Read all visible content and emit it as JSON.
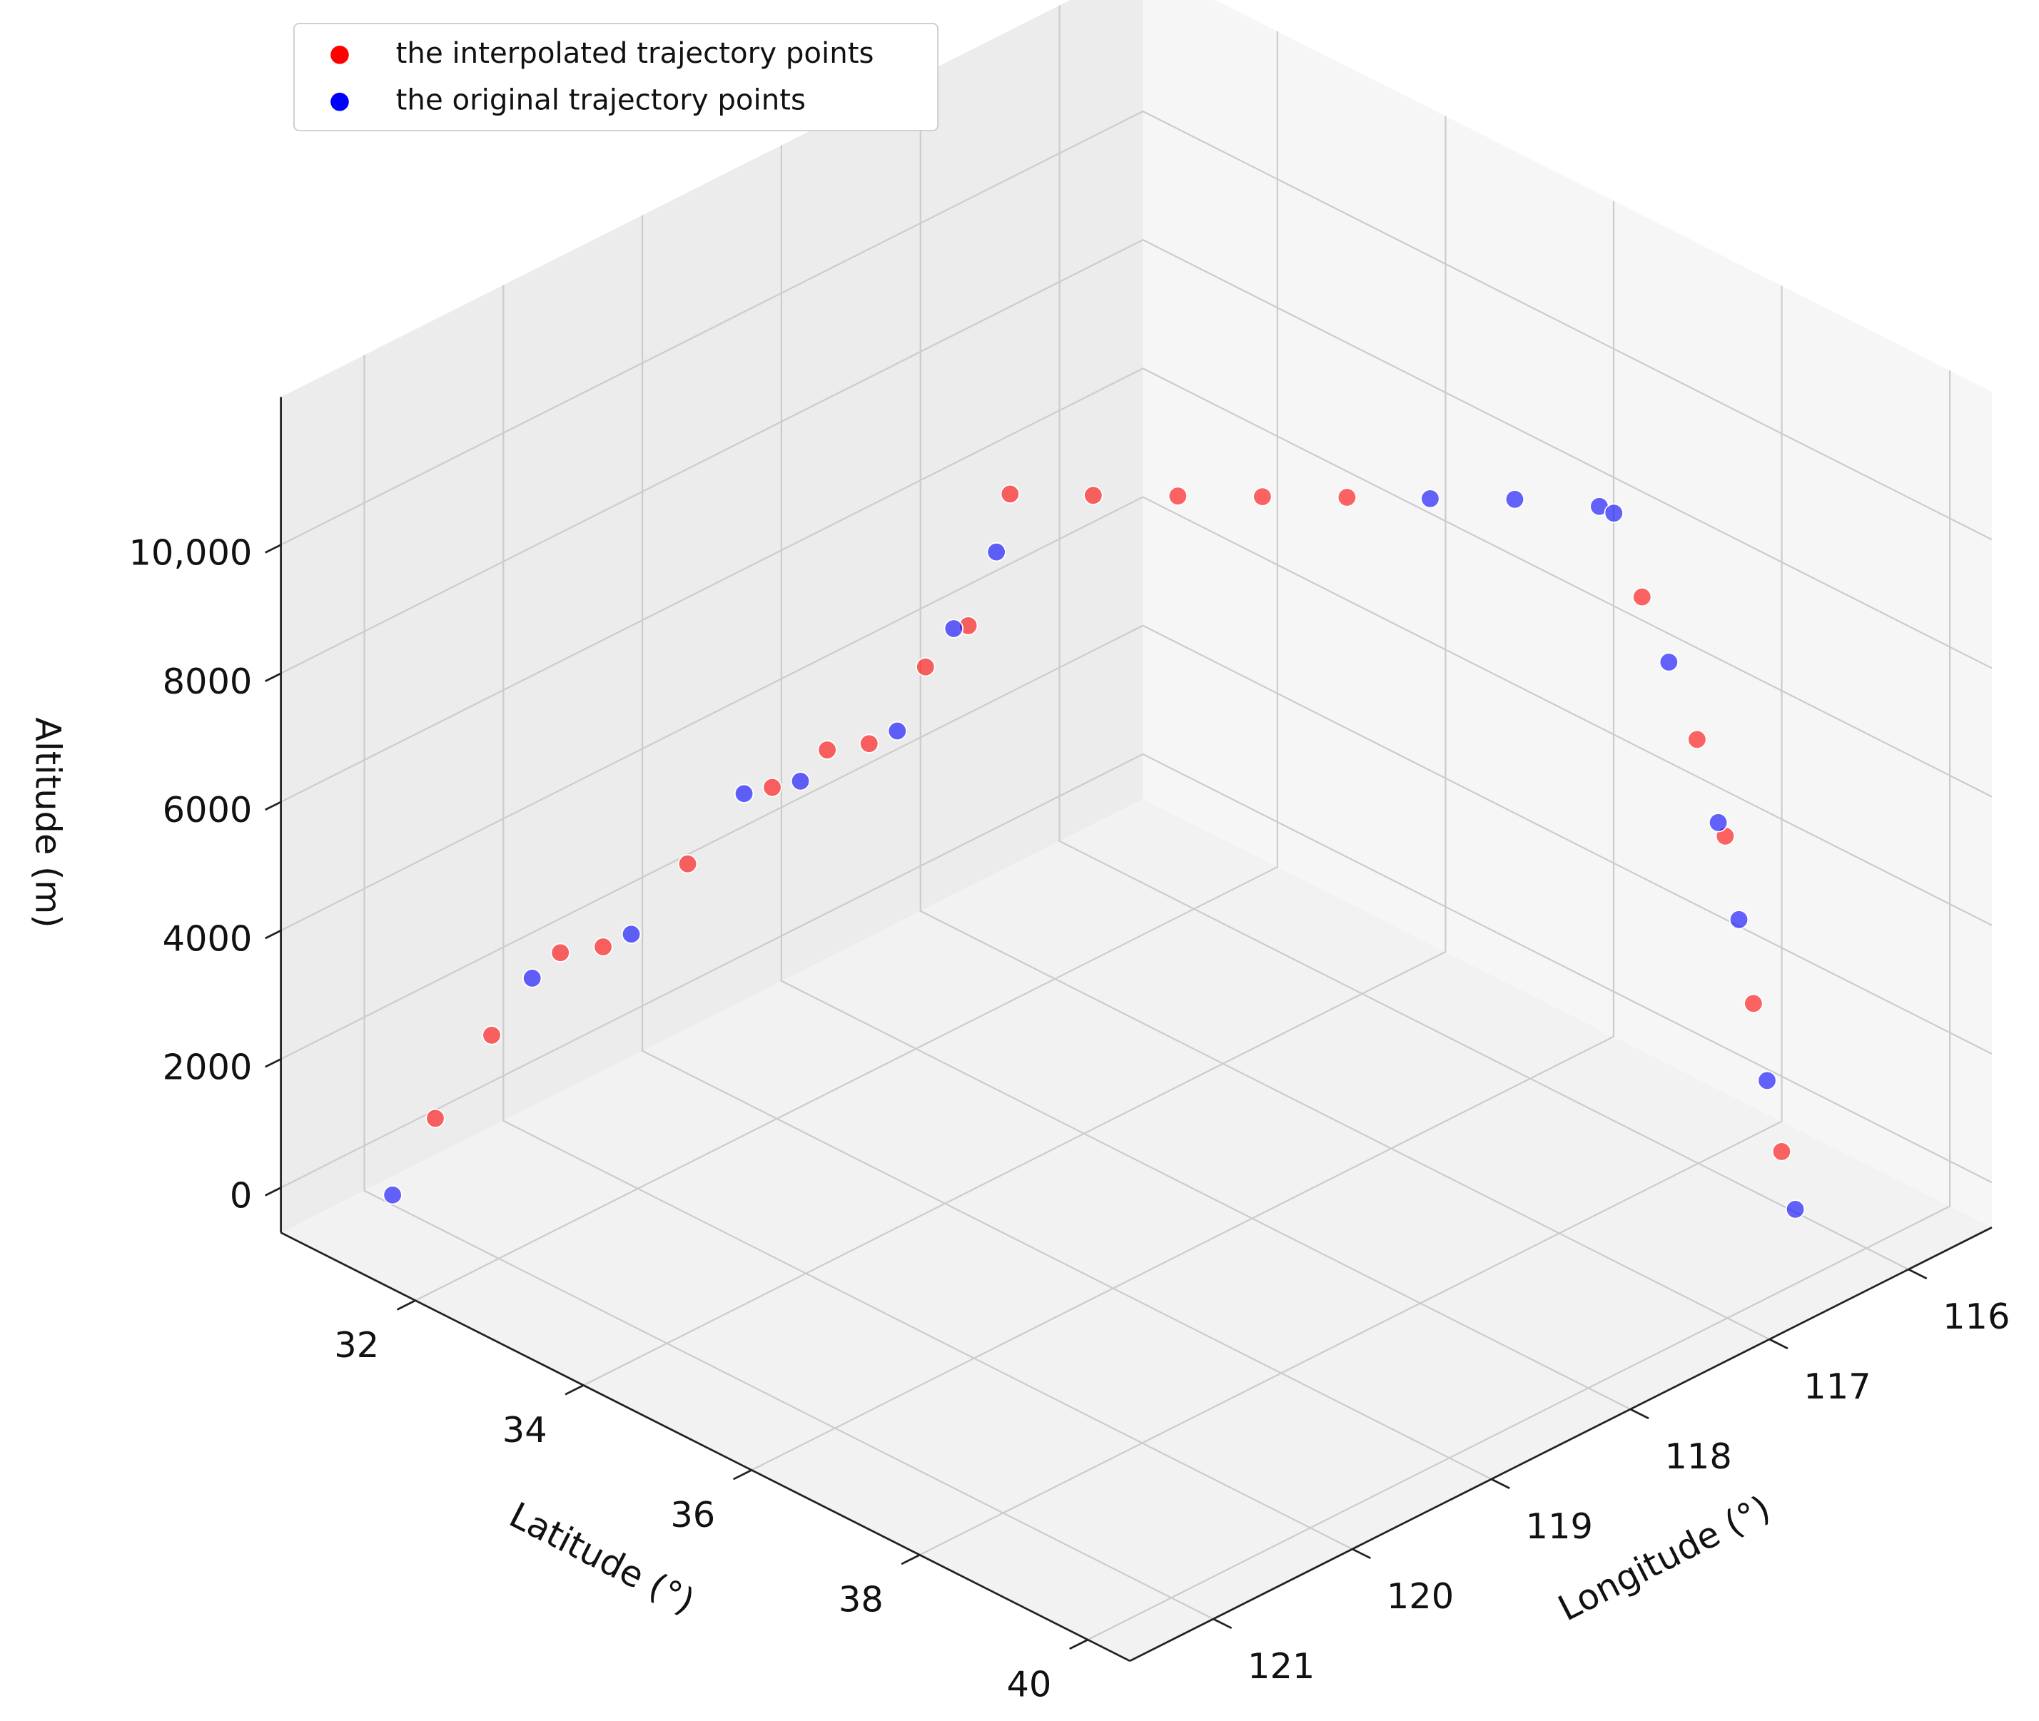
{
  "chart_data": {
    "type": "scatter3d",
    "xlabel": "Longitude (°)",
    "ylabel": "Latitude (°)",
    "zlabel": "Altitude (m)",
    "xlim": [
      115.4,
      121.6
    ],
    "ylim": [
      30.4,
      40.5
    ],
    "zlim": [
      -700,
      12300
    ],
    "xticks": [
      116,
      117,
      118,
      119,
      120,
      121
    ],
    "yticks": [
      32,
      34,
      36,
      38,
      40
    ],
    "zticks": [
      0,
      2000,
      4000,
      6000,
      8000,
      {
        "value": 10000,
        "label": "10,000"
      }
    ],
    "grid": true,
    "legend": "upper left",
    "series": [
      {
        "name": "the interpolated trajectory points",
        "color": "#ff0000",
        "x": [
          121.1,
          120.9,
          120.66,
          120.51,
          120.21,
          119.91,
          119.72,
          119.57,
          119.37,
          119.22,
          119.07,
          118.78,
          118.48,
          118.18,
          117.88,
          116.84,
          116.65,
          116.55,
          116.45,
          116.35
        ],
        "y": [
          31.41,
          31.75,
          32.17,
          32.43,
          32.94,
          33.45,
          33.79,
          34.04,
          34.38,
          34.64,
          34.89,
          35.4,
          35.91,
          36.42,
          36.93,
          38.72,
          39.06,
          39.23,
          39.4,
          39.57
        ],
        "z": [
          1200,
          2500,
          3800,
          3900,
          5200,
          6400,
          7000,
          7100,
          8300,
          8950,
          11000,
          11000,
          11000,
          11000,
          11000,
          9500,
          7300,
          5800,
          3200,
          900
        ]
      },
      {
        "name": "the original trajectory points",
        "color": "#0000ff",
        "x": [
          121.25,
          120.76,
          120.41,
          120.01,
          119.81,
          119.47,
          119.27,
          119.12,
          117.59,
          117.29,
          116.99,
          116.94,
          116.75,
          116.57,
          116.5,
          116.4,
          116.3
        ],
        "y": [
          31.15,
          32.0,
          32.6,
          33.28,
          33.62,
          34.21,
          34.55,
          34.81,
          37.44,
          37.95,
          38.46,
          38.55,
          38.89,
          39.18,
          39.31,
          39.48,
          39.65
        ],
        "z": [
          0,
          3400,
          4100,
          6300,
          6500,
          7300,
          8900,
          10100,
          11000,
          11000,
          10900,
          10800,
          8500,
          6000,
          4500,
          2000,
          0
        ]
      }
    ]
  }
}
